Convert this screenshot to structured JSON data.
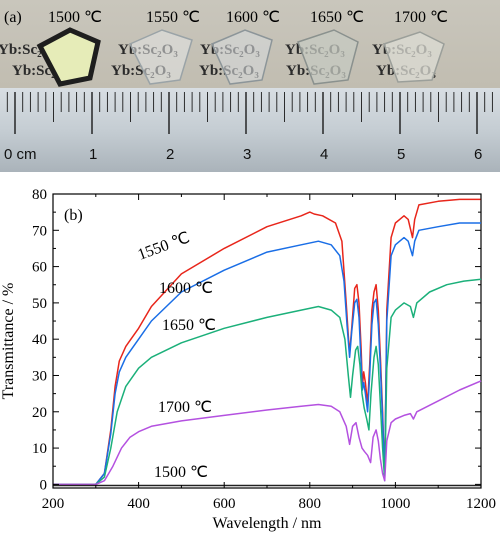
{
  "photo": {
    "panel_label": "(a)",
    "temperatures": [
      "1500 ℃",
      "1550 ℃",
      "1600 ℃",
      "1650 ℃",
      "1700 ℃"
    ],
    "sample_text": "Yb:Sc₂O₃",
    "ruler": {
      "unit_label": "0 cm",
      "numbers": [
        "1",
        "2",
        "3",
        "4",
        "5",
        "6"
      ]
    }
  },
  "chart_data": {
    "type": "line",
    "panel_label": "(b)",
    "xlabel": "Wavelength / nm",
    "ylabel": "Transmittance / %",
    "xlim": [
      200,
      1200
    ],
    "ylim": [
      -1,
      80
    ],
    "xticks": [
      "200",
      "400",
      "600",
      "800",
      "1000",
      "1200"
    ],
    "yticks": [
      "0",
      "10",
      "20",
      "30",
      "40",
      "50",
      "60",
      "70",
      "80"
    ],
    "grid": false,
    "series": [
      {
        "name": "1550 ℃",
        "color": "#e8261b",
        "points": [
          [
            200,
            0
          ],
          [
            300,
            0
          ],
          [
            320,
            3
          ],
          [
            335,
            15
          ],
          [
            345,
            27
          ],
          [
            355,
            34
          ],
          [
            370,
            38
          ],
          [
            400,
            43
          ],
          [
            430,
            49
          ],
          [
            500,
            58
          ],
          [
            600,
            65
          ],
          [
            700,
            71
          ],
          [
            780,
            74
          ],
          [
            800,
            75
          ],
          [
            810,
            74.5
          ],
          [
            830,
            74
          ],
          [
            860,
            72
          ],
          [
            875,
            67
          ],
          [
            885,
            50
          ],
          [
            890,
            41
          ],
          [
            893,
            36
          ],
          [
            898,
            43
          ],
          [
            905,
            54
          ],
          [
            910,
            55
          ],
          [
            915,
            50
          ],
          [
            920,
            37
          ],
          [
            923,
            27
          ],
          [
            926,
            31
          ],
          [
            930,
            28
          ],
          [
            935,
            22
          ],
          [
            940,
            33
          ],
          [
            945,
            48
          ],
          [
            950,
            53
          ],
          [
            955,
            55
          ],
          [
            960,
            48
          ],
          [
            965,
            35
          ],
          [
            970,
            20
          ],
          [
            975,
            2
          ],
          [
            980,
            48
          ],
          [
            990,
            68
          ],
          [
            1000,
            72
          ],
          [
            1010,
            73
          ],
          [
            1020,
            74
          ],
          [
            1030,
            73
          ],
          [
            1040,
            68
          ],
          [
            1045,
            73
          ],
          [
            1055,
            77
          ],
          [
            1100,
            78
          ],
          [
            1150,
            78.5
          ],
          [
            1200,
            78.5
          ]
        ]
      },
      {
        "name": "1600 ℃",
        "color": "#1a6ee6",
        "points": [
          [
            200,
            0
          ],
          [
            300,
            0
          ],
          [
            320,
            3
          ],
          [
            335,
            14
          ],
          [
            345,
            25
          ],
          [
            355,
            31
          ],
          [
            370,
            35
          ],
          [
            400,
            40
          ],
          [
            430,
            45
          ],
          [
            500,
            53
          ],
          [
            600,
            59
          ],
          [
            700,
            64
          ],
          [
            780,
            66
          ],
          [
            820,
            67
          ],
          [
            850,
            66
          ],
          [
            870,
            63
          ],
          [
            880,
            56
          ],
          [
            887,
            44
          ],
          [
            893,
            35
          ],
          [
            898,
            42
          ],
          [
            905,
            50
          ],
          [
            910,
            51
          ],
          [
            915,
            46
          ],
          [
            920,
            33
          ],
          [
            923,
            26
          ],
          [
            926,
            28
          ],
          [
            930,
            25
          ],
          [
            935,
            20
          ],
          [
            940,
            30
          ],
          [
            945,
            44
          ],
          [
            950,
            50
          ],
          [
            955,
            51
          ],
          [
            960,
            44
          ],
          [
            965,
            32
          ],
          [
            970,
            18
          ],
          [
            975,
            2
          ],
          [
            980,
            45
          ],
          [
            990,
            63
          ],
          [
            1000,
            66
          ],
          [
            1010,
            67
          ],
          [
            1020,
            68
          ],
          [
            1030,
            67
          ],
          [
            1040,
            63
          ],
          [
            1045,
            67
          ],
          [
            1055,
            70
          ],
          [
            1100,
            71
          ],
          [
            1150,
            72
          ],
          [
            1200,
            72
          ]
        ]
      },
      {
        "name": "1650 ℃",
        "color": "#1bb07a",
        "points": [
          [
            200,
            0
          ],
          [
            300,
            0
          ],
          [
            320,
            2
          ],
          [
            335,
            10
          ],
          [
            350,
            20
          ],
          [
            370,
            27
          ],
          [
            400,
            32
          ],
          [
            430,
            35
          ],
          [
            500,
            39
          ],
          [
            600,
            43
          ],
          [
            700,
            46
          ],
          [
            780,
            48
          ],
          [
            820,
            49
          ],
          [
            850,
            48
          ],
          [
            870,
            46
          ],
          [
            882,
            40
          ],
          [
            890,
            30
          ],
          [
            895,
            24
          ],
          [
            900,
            30
          ],
          [
            907,
            37
          ],
          [
            912,
            38
          ],
          [
            917,
            33
          ],
          [
            922,
            25
          ],
          [
            927,
            21
          ],
          [
            933,
            18
          ],
          [
            938,
            15
          ],
          [
            943,
            25
          ],
          [
            950,
            35
          ],
          [
            955,
            38
          ],
          [
            960,
            33
          ],
          [
            965,
            22
          ],
          [
            970,
            10
          ],
          [
            975,
            1
          ],
          [
            980,
            32
          ],
          [
            990,
            46
          ],
          [
            1000,
            48
          ],
          [
            1020,
            50
          ],
          [
            1035,
            49
          ],
          [
            1042,
            46
          ],
          [
            1050,
            50
          ],
          [
            1080,
            53
          ],
          [
            1120,
            55
          ],
          [
            1160,
            56
          ],
          [
            1200,
            56.5
          ]
        ]
      },
      {
        "name": "1700 ℃",
        "color": "#b451e0",
        "points": [
          [
            200,
            0
          ],
          [
            300,
            0
          ],
          [
            320,
            1
          ],
          [
            340,
            5
          ],
          [
            360,
            10
          ],
          [
            380,
            13
          ],
          [
            400,
            14.5
          ],
          [
            430,
            16
          ],
          [
            500,
            17.5
          ],
          [
            600,
            19
          ],
          [
            700,
            20.5
          ],
          [
            780,
            21.5
          ],
          [
            820,
            22
          ],
          [
            850,
            21.5
          ],
          [
            870,
            20
          ],
          [
            885,
            16
          ],
          [
            893,
            11
          ],
          [
            900,
            16
          ],
          [
            908,
            17
          ],
          [
            915,
            13
          ],
          [
            922,
            10
          ],
          [
            928,
            9
          ],
          [
            935,
            8
          ],
          [
            942,
            6
          ],
          [
            948,
            13
          ],
          [
            955,
            15
          ],
          [
            960,
            12
          ],
          [
            965,
            7
          ],
          [
            970,
            3
          ],
          [
            975,
            1
          ],
          [
            980,
            12
          ],
          [
            990,
            17
          ],
          [
            1000,
            18
          ],
          [
            1020,
            19
          ],
          [
            1035,
            19.5
          ],
          [
            1042,
            18
          ],
          [
            1050,
            20
          ],
          [
            1100,
            23
          ],
          [
            1150,
            26
          ],
          [
            1200,
            28.5
          ]
        ]
      },
      {
        "name": "1500 ℃",
        "color": "#222222",
        "points": [
          [
            200,
            -0.3
          ],
          [
            1200,
            -0.3
          ]
        ]
      }
    ]
  }
}
